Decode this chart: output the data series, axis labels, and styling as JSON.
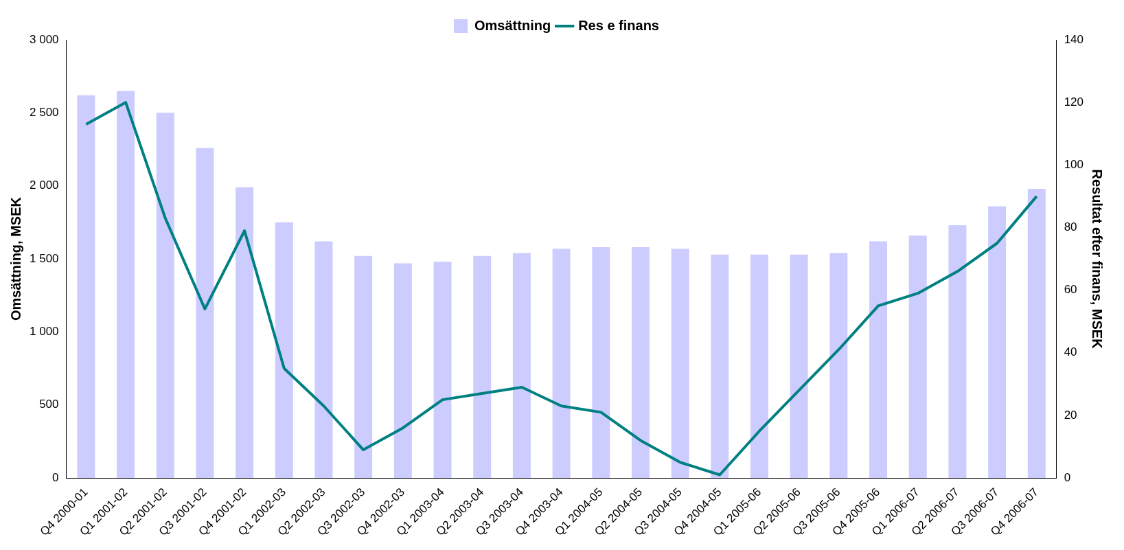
{
  "chart_data": {
    "type": "bar",
    "xlabel": null,
    "ylabel": "Omsättning, MSEK",
    "y2label": "Resultat efter finans, MSEK",
    "categories": [
      "Q4 2000-01",
      "Q1 2001-02",
      "Q2 2001-02",
      "Q3 2001-02",
      "Q4 2001-02",
      "Q1 2002-03",
      "Q2 2002-03",
      "Q3 2002-03",
      "Q4 2002-03",
      "Q1 2003-04",
      "Q2 2003-04",
      "Q3 2003-04",
      "Q4 2003-04",
      "Q1 2004-05",
      "Q2 2004-05",
      "Q3 2004-05",
      "Q4 2004-05",
      "Q1 2005-06",
      "Q2 2005-06",
      "Q3 2005-06",
      "Q4 2005-06",
      "Q1 2006-07",
      "Q2 2006-07",
      "Q3 2006-07",
      "Q4 2006-07"
    ],
    "series": [
      {
        "name": "Omsättning",
        "color": "#ccccff",
        "values": [
          2620,
          2650,
          2500,
          2260,
          1990,
          1750,
          1620,
          1520,
          1470,
          1480,
          1520,
          1540,
          1570,
          1580,
          1580,
          1570,
          1530,
          1530,
          1530,
          1540,
          1620,
          1660,
          1730,
          1860,
          1980
        ]
      },
      {
        "name": "Res e finans",
        "type": "line",
        "axis": "y2",
        "color": "#008080",
        "values": [
          113,
          120,
          83,
          54,
          79,
          35,
          23,
          9,
          16,
          25,
          27,
          29,
          23,
          21,
          12,
          5,
          1,
          15,
          28,
          41,
          55,
          59,
          66,
          75,
          90
        ]
      }
    ],
    "ylim": [
      0,
      3000
    ],
    "yticks": [
      0,
      {
        "value": 500,
        "label": "500"
      },
      {
        "value": 1000,
        "label": "1 000"
      },
      {
        "value": 1500,
        "label": "1 500"
      },
      {
        "value": 2000,
        "label": "2 000"
      },
      {
        "value": 2500,
        "label": "2 500"
      },
      {
        "value": 3000,
        "label": "3 000"
      }
    ],
    "y2lim": [
      0,
      140
    ],
    "y2ticks": [
      0,
      20,
      40,
      60,
      80,
      100,
      120,
      140
    ],
    "legend": "top",
    "marker": "none",
    "grid": false
  }
}
